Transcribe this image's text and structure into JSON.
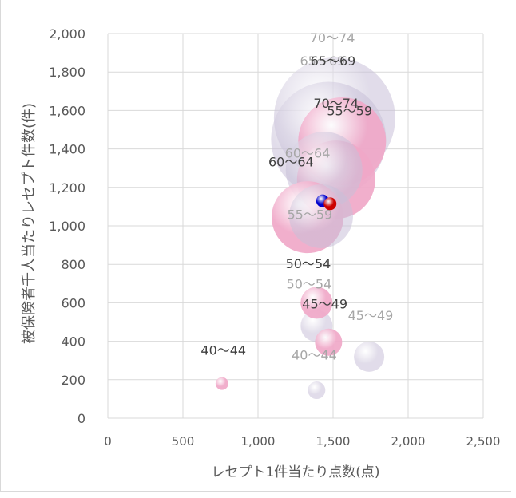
{
  "chart_data": {
    "type": "scatter",
    "subtype": "bubble",
    "xlabel": "レセプト1件当たり点数(点)",
    "ylabel": "被保険者千人当たりレセプト件数(件)",
    "xlim": [
      0,
      2500
    ],
    "ylim": [
      0,
      2000
    ],
    "x_ticks": [
      "0",
      "500",
      "1,000",
      "1,500",
      "2,000",
      "2,500"
    ],
    "y_ticks": [
      "0",
      "200",
      "400",
      "600",
      "800",
      "1,000",
      "1,200",
      "1,400",
      "1,600",
      "1,800",
      "2,000"
    ],
    "grid": true,
    "legend": "none",
    "series": [
      {
        "color": "#c8c0d8",
        "points": [
          {
            "label": "40～44",
            "x": 1390,
            "y": 145,
            "r": 11
          },
          {
            "label": "45～49",
            "x": 1740,
            "y": 320,
            "r": 19
          },
          {
            "label": "50～54",
            "x": 1390,
            "y": 480,
            "r": 20
          },
          {
            "label": "55～59",
            "x": 1420,
            "y": 1050,
            "r": 40
          },
          {
            "label": "60～64",
            "x": 1440,
            "y": 1290,
            "r": 48
          },
          {
            "label": "65～69",
            "x": 1470,
            "y": 1450,
            "r": 72
          },
          {
            "label": "70～74",
            "x": 1510,
            "y": 1560,
            "r": 76
          }
        ],
        "label_color": "#a6a6a6"
      },
      {
        "color": "#f0a8c8",
        "points": [
          {
            "label": "40～44",
            "x": 760,
            "y": 180,
            "r": 8
          },
          {
            "label": "45～49",
            "x": 1470,
            "y": 395,
            "r": 17
          },
          {
            "label": "50～54",
            "x": 1390,
            "y": 600,
            "r": 20
          },
          {
            "label": "55～59",
            "x": 1330,
            "y": 1045,
            "r": 45
          },
          {
            "label": "60～64",
            "x": 1520,
            "y": 1240,
            "r": 49
          },
          {
            "label": "65～69",
            "x": 1560,
            "y": 1440,
            "r": 55
          },
          {
            "label": "70～74",
            "x": 1500,
            "y": 1650,
            "r": 0
          }
        ],
        "label_color": "#404040"
      },
      {
        "color": "#0000cc",
        "points": [
          {
            "x": 1430,
            "y": 1130,
            "r": 8
          }
        ]
      },
      {
        "color": "#cc0000",
        "points": [
          {
            "x": 1480,
            "y": 1115,
            "r": 8
          }
        ]
      }
    ],
    "annotations": [
      {
        "text": "70～74",
        "x": 1495,
        "y": 1955,
        "color": "#a6a6a6"
      },
      {
        "text": "65～69",
        "x": 1430,
        "y": 1835,
        "color": "#a6a6a6"
      },
      {
        "text": "65～69",
        "x": 1500,
        "y": 1835,
        "color": "#404040"
      },
      {
        "text": "70～74",
        "x": 1520,
        "y": 1615,
        "color": "#404040"
      },
      {
        "text": "55～59",
        "x": 1610,
        "y": 1575,
        "color": "#404040"
      },
      {
        "text": "60～64",
        "x": 1330,
        "y": 1355,
        "color": "#a6a6a6"
      },
      {
        "text": "60～64",
        "x": 1220,
        "y": 1310,
        "color": "#404040"
      },
      {
        "text": "55～59",
        "x": 1345,
        "y": 1035,
        "color": "#a6a6a6"
      },
      {
        "text": "50～54",
        "x": 1335,
        "y": 780,
        "color": "#404040"
      },
      {
        "text": "50～54",
        "x": 1340,
        "y": 675,
        "color": "#a6a6a6"
      },
      {
        "text": "45～49",
        "x": 1445,
        "y": 570,
        "color": "#404040"
      },
      {
        "text": "45～49",
        "x": 1750,
        "y": 510,
        "color": "#a6a6a6"
      },
      {
        "text": "40～44",
        "x": 1375,
        "y": 305,
        "color": "#a6a6a6"
      },
      {
        "text": "40～44",
        "x": 770,
        "y": 330,
        "color": "#404040"
      }
    ]
  }
}
